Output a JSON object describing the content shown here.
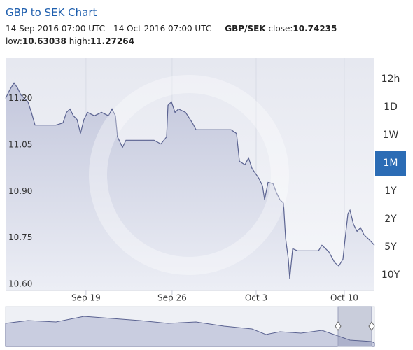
{
  "chart_data": {
    "type": "area",
    "title": "GBP to SEK Chart",
    "period": "14 Sep 2016 07:00 UTC - 14 Oct 2016 07:00 UTC",
    "pair": "GBP/SEK",
    "close_label": "close:",
    "close": 10.74235,
    "low_label": "low:",
    "low": 10.63038,
    "high_label": "high:",
    "high": 11.27264,
    "ranges": [
      "12h",
      "1D",
      "1W",
      "1M",
      "1Y",
      "2Y",
      "5Y",
      "10Y"
    ],
    "active_range": "1M",
    "color": "#5b6391",
    "fill": "#c9cde0",
    "grid": true,
    "xlim": [
      0,
      21.42
    ],
    "xticks": [
      {
        "value": 4.67,
        "label": "Sep 19"
      },
      {
        "value": 9.67,
        "label": "Sep 26"
      },
      {
        "value": 14.55,
        "label": "Oct 3"
      },
      {
        "value": 19.67,
        "label": "Oct 10"
      }
    ],
    "ylim": [
      10.58,
      11.33
    ],
    "yticks": [
      {
        "value": 10.6,
        "label": "10.60"
      },
      10.75,
      {
        "value": 10.9,
        "label": "10.90"
      },
      11.05,
      {
        "value": 11.2,
        "label": "11.20"
      }
    ],
    "x": [
      0,
      0.24,
      0.49,
      0.69,
      0.89,
      1.1,
      1.3,
      1.5,
      1.71,
      2.11,
      2.93,
      3.33,
      3.54,
      3.74,
      3.94,
      4.15,
      4.35,
      4.55,
      4.76,
      5.16,
      5.57,
      5.98,
      6.18,
      6.38,
      6.5,
      6.79,
      6.99,
      7.8,
      8.62,
      9.02,
      9.35,
      9.43,
      9.63,
      9.84,
      10.04,
      10.45,
      10.85,
      11.06,
      11.46,
      12.28,
      13.09,
      13.41,
      13.58,
      13.9,
      14.11,
      14.31,
      14.72,
      14.92,
      15.04,
      15.24,
      15.53,
      15.73,
      15.93,
      16.14,
      16.26,
      16.42,
      16.5,
      16.67,
      16.95,
      17.56,
      18.17,
      18.37,
      18.58,
      18.78,
      19.11,
      19.35,
      19.59,
      19.72,
      19.88,
      20.0,
      20.2,
      20.41,
      20.61,
      20.81,
      21.02,
      21.22,
      21.42
    ],
    "values": [
      11.2,
      11.227,
      11.25,
      11.234,
      11.211,
      11.2,
      11.189,
      11.155,
      11.114,
      11.114,
      11.114,
      11.121,
      11.155,
      11.166,
      11.144,
      11.132,
      11.087,
      11.132,
      11.155,
      11.144,
      11.155,
      11.144,
      11.166,
      11.144,
      11.076,
      11.042,
      11.065,
      11.065,
      11.065,
      11.053,
      11.076,
      11.178,
      11.189,
      11.155,
      11.166,
      11.155,
      11.121,
      11.099,
      11.099,
      11.099,
      11.099,
      11.087,
      10.997,
      10.986,
      11.008,
      10.974,
      10.941,
      10.918,
      10.873,
      10.929,
      10.925,
      10.896,
      10.873,
      10.862,
      10.749,
      10.681,
      10.618,
      10.715,
      10.708,
      10.708,
      10.708,
      10.726,
      10.715,
      10.704,
      10.67,
      10.659,
      10.681,
      10.749,
      10.828,
      10.839,
      10.794,
      10.771,
      10.783,
      10.76,
      10.749,
      10.738,
      10.726
    ]
  }
}
